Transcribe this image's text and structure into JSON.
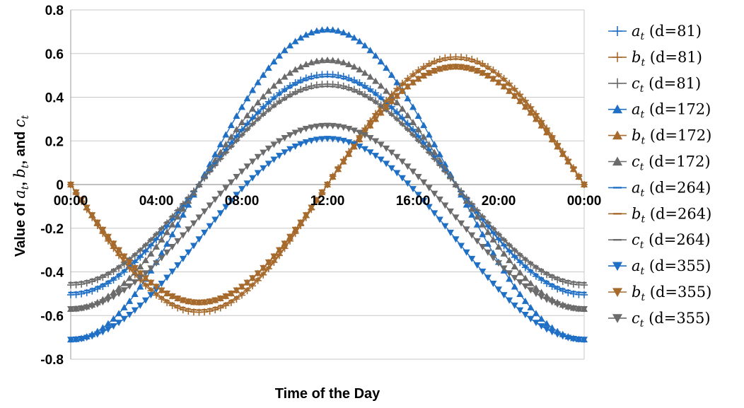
{
  "chart_data": {
    "type": "line",
    "title": "",
    "xlabel": "Time of the Day",
    "ylabel": {
      "prefix": "Value of",
      "parts": [
        {
          "sym": "a",
          "sub": "t",
          "sep": ","
        },
        {
          "sym": "b",
          "sub": "t",
          "sep": ", and"
        },
        {
          "sym": "c",
          "sub": "t",
          "sep": ""
        }
      ]
    },
    "x_ticks": [
      "00:00",
      "04:00",
      "08:00",
      "12:00",
      "16:00",
      "20:00",
      "00:00"
    ],
    "x_range_hours": [
      0,
      24
    ],
    "y_ticks": [
      "0.8",
      "0.6",
      "0.4",
      "0.2",
      "0",
      "-0.2",
      "-0.4",
      "-0.6",
      "-0.8"
    ],
    "ylim": [
      -0.8,
      0.8
    ],
    "grid": true,
    "legend_position": "right",
    "colors": {
      "a": "#1f6fc5",
      "b": "#a66a2c",
      "c": "#6b6b6b",
      "grid": "#c8c8c8",
      "axis": "#9a9a9a"
    },
    "series": [
      {
        "symbol": "a",
        "day": "(d=81)",
        "marker": "plus",
        "color": "a",
        "mean": 0.0,
        "amp": 0.505,
        "shape": "cos"
      },
      {
        "symbol": "b",
        "day": "(d=81)",
        "marker": "plus",
        "color": "b",
        "mean": 0.0,
        "amp": 0.585,
        "shape": "sin"
      },
      {
        "symbol": "c",
        "day": "(d=81)",
        "marker": "plus",
        "color": "c",
        "mean": 0.0,
        "amp": 0.46,
        "shape": "cos"
      },
      {
        "symbol": "a",
        "day": "(d=172)",
        "marker": "triangle-up",
        "color": "a",
        "mean": 0.0,
        "amp": 0.71,
        "shape": "cos"
      },
      {
        "symbol": "b",
        "day": "(d=172)",
        "marker": "triangle-up",
        "color": "b",
        "mean": 0.0,
        "amp": 0.54,
        "shape": "sin"
      },
      {
        "symbol": "c",
        "day": "(d=172)",
        "marker": "triangle-up",
        "color": "c",
        "mean": 0.0,
        "amp": 0.57,
        "shape": "cos"
      },
      {
        "symbol": "a",
        "day": "(d=264)",
        "marker": "dash",
        "color": "a",
        "mean": 0.0,
        "amp": 0.495,
        "shape": "cos"
      },
      {
        "symbol": "b",
        "day": "(d=264)",
        "marker": "dash",
        "color": "b",
        "mean": 0.0,
        "amp": 0.575,
        "shape": "sin"
      },
      {
        "symbol": "c",
        "day": "(d=264)",
        "marker": "dash",
        "color": "c",
        "mean": 0.0,
        "amp": 0.45,
        "shape": "cos"
      },
      {
        "symbol": "a",
        "day": "(d=355)",
        "marker": "triangle-down",
        "color": "a",
        "mean": 0.0,
        "amp": 0.71,
        "shape": "cos",
        "lo": -0.71,
        "hi": 0.21
      },
      {
        "symbol": "b",
        "day": "(d=355)",
        "marker": "triangle-down",
        "color": "b",
        "mean": 0.0,
        "amp": 0.54,
        "shape": "sin"
      },
      {
        "symbol": "c",
        "day": "(d=355)",
        "marker": "triangle-down",
        "color": "c",
        "mean": 0.0,
        "amp": 0.57,
        "shape": "cos",
        "lo": -0.57,
        "hi": 0.27
      }
    ]
  }
}
